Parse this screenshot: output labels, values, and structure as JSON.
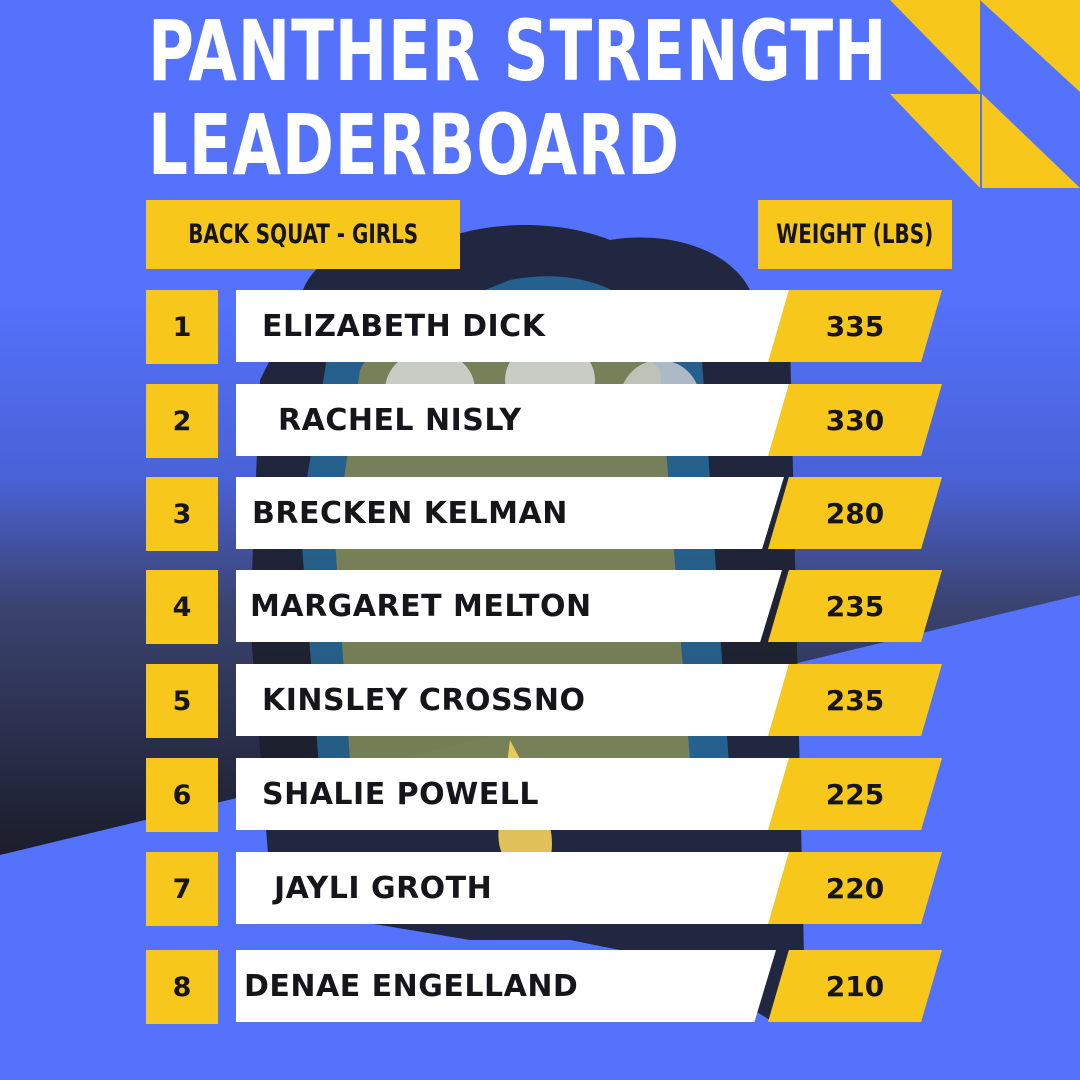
{
  "title_line1": "PANTHER STRENGTH",
  "title_line2": "LEADERBOARD",
  "header_left": "BACK SQUAT - GIRLS",
  "header_right": "WEIGHT (LBS)",
  "colors": {
    "background": "#5472fb",
    "accent": "#f7c71c",
    "panel": "#ffffff",
    "text_dark": "#15151a"
  },
  "rows": [
    {
      "rank": "1",
      "name": "ELIZABETH DICK",
      "weight": "335"
    },
    {
      "rank": "2",
      "name": "RACHEL NISLY",
      "weight": "330"
    },
    {
      "rank": "3",
      "name": "BRECKEN KELMAN",
      "weight": "280"
    },
    {
      "rank": "4",
      "name": "MARGARET MELTON",
      "weight": "235"
    },
    {
      "rank": "5",
      "name": "KINSLEY CROSSNO",
      "weight": "235"
    },
    {
      "rank": "6",
      "name": "SHALIE POWELL",
      "weight": "225"
    },
    {
      "rank": "7",
      "name": "JAYLI GROTH",
      "weight": "220"
    },
    {
      "rank": "8",
      "name": "DENAE ENGELLAND",
      "weight": "210"
    }
  ]
}
